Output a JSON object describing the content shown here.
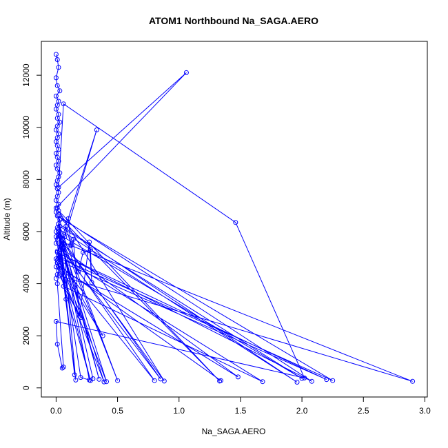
{
  "chart_data": {
    "type": "line",
    "title": "ATOM1 Northbound Na_SAGA.AERO",
    "xlabel": "Na_SAGA.AERO",
    "ylabel": "Altitude (m)",
    "xlim": [
      -0.12,
      3.02
    ],
    "ylim": [
      -350,
      13300
    ],
    "xticks": [
      0.0,
      0.5,
      1.0,
      1.5,
      2.0,
      2.5,
      3.0
    ],
    "xtick_labels": [
      "0.0",
      "0.5",
      "1.0",
      "1.5",
      "2.0",
      "2.5",
      "3.0"
    ],
    "yticks": [
      0,
      2000,
      4000,
      6000,
      8000,
      10000,
      12000
    ],
    "ytick_labels": [
      "0",
      "2000",
      "4000",
      "6000",
      "8000",
      "10000",
      "12000"
    ],
    "grid": false,
    "series_color": "#0000ff",
    "series": [
      {
        "x": [
          0.0,
          0.01,
          0.02,
          0.0,
          0.01,
          0.03,
          0.0,
          0.02,
          0.01,
          0.0,
          0.02,
          0.01,
          0.03,
          0.01,
          0.0,
          0.02,
          0.01,
          0.0,
          0.01,
          0.02,
          0.0,
          0.01,
          0.02,
          0.0,
          0.01,
          0.03,
          0.02,
          0.01,
          0.0,
          0.01,
          0.02,
          0.01,
          0.0,
          0.02,
          0.01,
          0.0,
          0.01,
          0.03,
          0.02,
          0.01,
          0.0,
          0.02,
          0.01,
          0.0,
          0.03,
          0.01,
          0.02,
          0.0,
          0.01,
          0.0,
          0.02,
          0.01,
          0.0
        ],
        "y": [
          12800,
          12600,
          12300,
          11900,
          11600,
          11400,
          11200,
          11000,
          10850,
          10700,
          10500,
          10350,
          10200,
          10050,
          9900,
          9750,
          9600,
          9450,
          9300,
          9150,
          9000,
          8850,
          8700,
          8550,
          8400,
          8250,
          8100,
          7950,
          7800,
          7650,
          7500,
          7350,
          7200,
          7050,
          6900,
          6750,
          6600,
          6450,
          6300,
          6150,
          6000,
          5850,
          5700,
          5550,
          5400,
          5250,
          5100,
          4950,
          4800,
          4650,
          4500,
          4350,
          4200
        ]
      },
      {
        "x": [
          0.02,
          0.2,
          0.27,
          0.05,
          0.3,
          0.02,
          1.96,
          0.02,
          0.35,
          0.03,
          0.08,
          0.02,
          2.08,
          0.01,
          0.33,
          0.04,
          0.15,
          0.02,
          2.0,
          0.03,
          0.5,
          0.05,
          0.85,
          0.03,
          1.48,
          0.1,
          0.38,
          0.01,
          0.28,
          0.02,
          1.68,
          0.06,
          0.2,
          0.03,
          2.9,
          0.05,
          0.41,
          0.02,
          2.25,
          0.04,
          1.33,
          0.02,
          0.88,
          0.06,
          0.16,
          0.03,
          2.2,
          0.01,
          0.8,
          0.04,
          0.39,
          0.02,
          1.34
        ],
        "y": [
          6000,
          400,
          300,
          5500,
          350,
          6100,
          220,
          6300,
          330,
          5800,
          3400,
          6600,
          250,
          5200,
          9900,
          5300,
          500,
          5900,
          360,
          6200,
          280,
          5700,
          340,
          5400,
          420,
          4400,
          2000,
          4800,
          280,
          5100,
          240,
          3900,
          2700,
          4300,
          250,
          5600,
          240,
          5000,
          280,
          6500,
          260,
          6800,
          260,
          5550,
          300,
          5150,
          320,
          4900,
          280,
          5450,
          230,
          4700,
          280
        ]
      },
      {
        "x": [
          0.0,
          1.06,
          0.02,
          0.06,
          1.46,
          2.02,
          0.0,
          0.01,
          0.05,
          0.06,
          0.01,
          0.03,
          0.0,
          0.07,
          0.08,
          0.12,
          0.18,
          0.22,
          0.28,
          0.29,
          0.27,
          0.19,
          0.14,
          0.12,
          0.1
        ],
        "y": [
          6900,
          12100,
          7700,
          10900,
          6350,
          380,
          2550,
          1680,
          760,
          800,
          4000,
          5000,
          5800,
          5800,
          6200,
          5500,
          4450,
          5200,
          5300,
          4050,
          5600,
          2750,
          5700,
          5450,
          6500
        ]
      }
    ]
  }
}
